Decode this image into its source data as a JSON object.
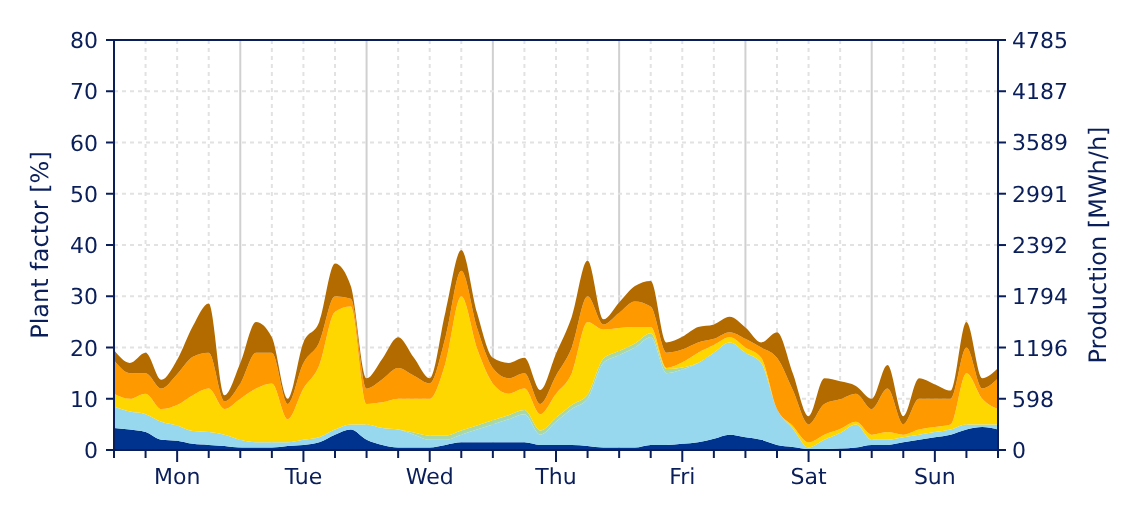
{
  "chart_data": {
    "type": "area",
    "stacked": true,
    "ylabel": "Plant factor [%]",
    "y2label": "Production [MWh/h]",
    "categories": [
      null,
      null,
      null,
      null,
      "Mon",
      null,
      null,
      null,
      null,
      null,
      null,
      null,
      "Tue",
      null,
      null,
      null,
      null,
      null,
      null,
      null,
      "Wed",
      null,
      null,
      null,
      null,
      null,
      null,
      null,
      "Thu",
      null,
      null,
      null,
      null,
      null,
      null,
      null,
      "Fri",
      null,
      null,
      null,
      null,
      null,
      null,
      null,
      "Sat",
      null,
      null,
      null,
      null,
      null,
      null,
      null,
      "Sun",
      null,
      null,
      null,
      null
    ],
    "ylim": [
      0,
      80
    ],
    "yticks": [
      0,
      10,
      20,
      30,
      40,
      50,
      60,
      70,
      80
    ],
    "y2lim": [
      0,
      4785
    ],
    "y2ticks": [
      0,
      598,
      1196,
      1794,
      2392,
      2991,
      3589,
      4187,
      4785
    ],
    "grid": true,
    "series": [
      {
        "color": "#00338d",
        "values": [
          4.3,
          4,
          3.5,
          2,
          1.8,
          1.2,
          1,
          0.8,
          0.5,
          0.5,
          0.5,
          0.8,
          1,
          1.5,
          3,
          4,
          2,
          1,
          0.5,
          0.5,
          0.5,
          1,
          1.5,
          1.5,
          1.5,
          1.5,
          1.5,
          1,
          1,
          1,
          0.8,
          0.5,
          0.5,
          0.5,
          1,
          1,
          1.2,
          1.5,
          2.2,
          3,
          2.5,
          2,
          1,
          0.6,
          0.2,
          0.2,
          0.3,
          0.5,
          1,
          1,
          1.5,
          2,
          2.5,
          3,
          4,
          4.5,
          4
        ]
      },
      {
        "color": "#98d8ee",
        "values": [
          4.2,
          3.5,
          3.5,
          3.5,
          3,
          2.5,
          2.5,
          2.2,
          1.5,
          1,
          1,
          0.7,
          1,
          1,
          1,
          1,
          3,
          3.3,
          3.5,
          2.5,
          1.5,
          1,
          1.5,
          2.5,
          3.5,
          4.5,
          5.5,
          2,
          4.5,
          7,
          9.2,
          16.5,
          18,
          19.5,
          21,
          14,
          14.5,
          15.5,
          16.8,
          18,
          16.5,
          15,
          7,
          3.6,
          0.3,
          1.8,
          3,
          4.5,
          1,
          1,
          1,
          1,
          1,
          1,
          1,
          0.5,
          1
        ]
      },
      {
        "color": "#a8d8a8",
        "values": [
          0,
          0,
          0,
          0,
          0,
          0,
          0,
          0,
          0,
          0,
          0,
          0,
          0,
          0,
          0,
          0,
          0,
          0,
          0,
          0.4,
          0.8,
          0.8,
          0.8,
          0.8,
          0.8,
          0.8,
          0.8,
          0.8,
          0.8,
          0.8,
          0.8,
          0.8,
          0.8,
          0.8,
          0.8,
          0.8,
          0.4,
          0,
          0,
          0,
          0,
          0,
          0,
          0,
          0,
          0,
          0,
          0,
          0,
          0,
          0,
          0,
          0,
          0,
          0,
          0,
          0
        ]
      },
      {
        "color": "#ffd700",
        "values": [
          2.5,
          2.5,
          4,
          2.5,
          4,
          7,
          8.5,
          5,
          8,
          10.5,
          11.5,
          4.5,
          10,
          14,
          23,
          23,
          4,
          5,
          6,
          6.6,
          7.2,
          14.2,
          26.2,
          15,
          7.2,
          4.2,
          4.2,
          3.2,
          4.7,
          6.2,
          14.2,
          5.7,
          4.5,
          3.2,
          1.2,
          0.2,
          1,
          2,
          1.5,
          1,
          1,
          1,
          0,
          0.5,
          1,
          1,
          0.8,
          0.5,
          1,
          1.5,
          0.5,
          1,
          1,
          1,
          10,
          5,
          3
        ]
      },
      {
        "color": "#ff9900",
        "values": [
          6.5,
          5,
          4,
          4,
          6,
          7.5,
          7,
          1.5,
          3,
          7,
          6,
          3,
          5,
          4.5,
          3,
          1.5,
          3,
          4.5,
          6,
          4.5,
          3,
          5,
          5,
          4,
          3,
          3,
          3,
          2,
          3.5,
          5,
          5,
          1,
          3,
          5,
          4,
          3,
          2.5,
          2,
          1.2,
          1,
          1.7,
          2,
          10,
          7,
          3.5,
          6,
          5.8,
          5.5,
          5,
          8.5,
          2,
          6,
          5.5,
          5,
          5,
          2,
          6
        ]
      },
      {
        "color": "#b36b00",
        "values": [
          2,
          2,
          4,
          1.7,
          2.8,
          6,
          9.6,
          1.2,
          4,
          6,
          3,
          1,
          4,
          4,
          6.4,
          2.5,
          2,
          4,
          6,
          3.5,
          1,
          5,
          4,
          3,
          2,
          3,
          3,
          2.7,
          4.3,
          6,
          7,
          1,
          2,
          3,
          5,
          2,
          2.5,
          3,
          2.8,
          3,
          2.2,
          1,
          5,
          3.3,
          1.6,
          5,
          3.5,
          1.5,
          2,
          4.6,
          1.6,
          4,
          2.8,
          1.6,
          5,
          2,
          2
        ]
      }
    ]
  }
}
